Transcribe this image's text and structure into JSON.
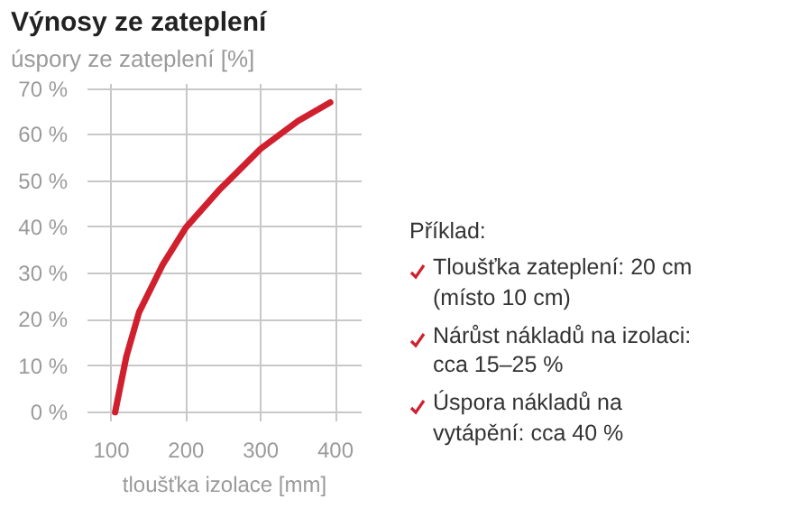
{
  "chart_data": {
    "type": "line",
    "title": "Výnosy ze zateplení",
    "ylabel": "úspory ze zateplení [%]",
    "xlabel": "tloušťka izolace [mm]",
    "x": [
      105,
      120,
      137,
      169,
      200,
      244,
      300,
      350,
      393
    ],
    "series": [
      {
        "color": "#d0202e",
        "values": [
          0,
          12,
          21.6,
          32,
          40,
          48,
          57,
          63,
          67
        ]
      }
    ],
    "xlim": [
      68,
      435
    ],
    "ylim": [
      -2,
      71
    ],
    "xticks": [
      100,
      200,
      300,
      400
    ],
    "yticks": [
      {
        "value": 0,
        "label": "0 %"
      },
      {
        "value": 10,
        "label": "10 %"
      },
      {
        "value": 20,
        "label": "20 %"
      },
      {
        "value": 30,
        "label": "30 %"
      },
      {
        "value": 40,
        "label": "40 %"
      },
      {
        "value": 50,
        "label": "50 %"
      },
      {
        "value": 60,
        "label": "60 %"
      },
      {
        "value": 70,
        "label": "70 %"
      }
    ],
    "grid": true,
    "marker": "none",
    "line_style": "solid",
    "annotations": [
      "Příklad:",
      "Tloušťka zateplení: 20 cm (místo 10 cm)",
      "Nárůst nákladů na izolaci: cca 15–25 %",
      "Úspora nákladů na vytápění: cca 40 %"
    ]
  }
}
